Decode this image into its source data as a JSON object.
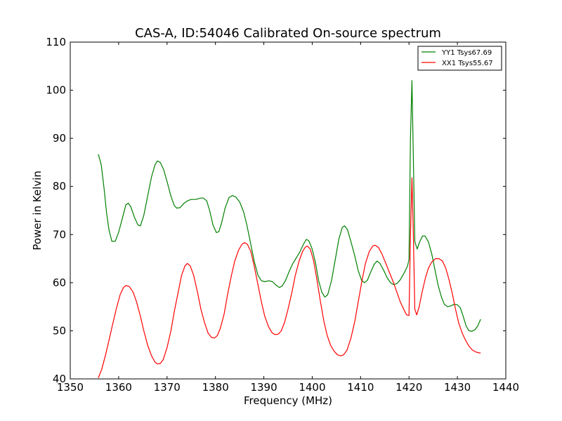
{
  "chart_data": {
    "type": "line",
    "title": "CAS-A, ID:54046 Calibrated On-source spectrum",
    "xlabel": "Frequency (MHz)",
    "ylabel": "Power in Kelvin",
    "xlim": [
      1350,
      1440
    ],
    "ylim": [
      40,
      110
    ],
    "xticks": [
      1350,
      1360,
      1370,
      1380,
      1390,
      1400,
      1410,
      1420,
      1430,
      1440
    ],
    "yticks": [
      40,
      50,
      60,
      70,
      80,
      90,
      100,
      110
    ],
    "grid": false,
    "legend_position": "top-right",
    "series": [
      {
        "name": "YY1 Tsys67.69",
        "color": "#008000",
        "points": [
          [
            1355.8,
            86.7
          ],
          [
            1356.4,
            84.5
          ],
          [
            1357.0,
            79.5
          ],
          [
            1357.5,
            74.5
          ],
          [
            1358.0,
            71.0
          ],
          [
            1358.6,
            68.6
          ],
          [
            1359.3,
            68.6
          ],
          [
            1360.0,
            70.5
          ],
          [
            1360.8,
            73.5
          ],
          [
            1361.5,
            76.2
          ],
          [
            1362.0,
            76.5
          ],
          [
            1362.5,
            75.8
          ],
          [
            1363.3,
            73.5
          ],
          [
            1364.0,
            72.0
          ],
          [
            1364.5,
            71.8
          ],
          [
            1365.2,
            74.0
          ],
          [
            1366.0,
            78.0
          ],
          [
            1366.8,
            82.0
          ],
          [
            1367.5,
            84.5
          ],
          [
            1368.0,
            85.3
          ],
          [
            1368.6,
            85.0
          ],
          [
            1369.3,
            83.5
          ],
          [
            1370.0,
            81.0
          ],
          [
            1370.8,
            78.0
          ],
          [
            1371.5,
            76.0
          ],
          [
            1372.0,
            75.5
          ],
          [
            1372.7,
            75.6
          ],
          [
            1373.5,
            76.5
          ],
          [
            1374.2,
            77.0
          ],
          [
            1375.0,
            77.3
          ],
          [
            1376.0,
            77.3
          ],
          [
            1377.0,
            77.6
          ],
          [
            1377.5,
            77.6
          ],
          [
            1378.2,
            77.0
          ],
          [
            1378.8,
            75.0
          ],
          [
            1379.5,
            72.0
          ],
          [
            1380.2,
            70.4
          ],
          [
            1380.7,
            70.6
          ],
          [
            1381.3,
            72.5
          ],
          [
            1382.0,
            75.5
          ],
          [
            1382.8,
            77.7
          ],
          [
            1383.5,
            78.1
          ],
          [
            1384.2,
            77.8
          ],
          [
            1385.0,
            76.8
          ],
          [
            1385.8,
            74.8
          ],
          [
            1386.5,
            72.0
          ],
          [
            1387.3,
            68.0
          ],
          [
            1388.0,
            64.5
          ],
          [
            1388.8,
            61.5
          ],
          [
            1389.5,
            60.4
          ],
          [
            1390.2,
            60.2
          ],
          [
            1391.0,
            60.4
          ],
          [
            1391.8,
            60.2
          ],
          [
            1392.5,
            59.5
          ],
          [
            1393.2,
            59.0
          ],
          [
            1393.8,
            59.3
          ],
          [
            1394.5,
            60.5
          ],
          [
            1395.3,
            62.5
          ],
          [
            1396.0,
            64.0
          ],
          [
            1396.8,
            65.3
          ],
          [
            1397.5,
            66.5
          ],
          [
            1398.2,
            68.0
          ],
          [
            1398.8,
            69.0
          ],
          [
            1399.3,
            68.7
          ],
          [
            1400.0,
            67.0
          ],
          [
            1400.7,
            64.0
          ],
          [
            1401.3,
            60.5
          ],
          [
            1402.0,
            58.0
          ],
          [
            1402.6,
            57.0
          ],
          [
            1403.2,
            57.5
          ],
          [
            1404.0,
            60.5
          ],
          [
            1404.8,
            65.0
          ],
          [
            1405.5,
            69.0
          ],
          [
            1406.2,
            71.5
          ],
          [
            1406.7,
            71.8
          ],
          [
            1407.3,
            71.0
          ],
          [
            1408.0,
            68.5
          ],
          [
            1408.8,
            65.5
          ],
          [
            1409.5,
            62.5
          ],
          [
            1410.2,
            60.5
          ],
          [
            1410.8,
            60.0
          ],
          [
            1411.4,
            60.5
          ],
          [
            1412.0,
            62.0
          ],
          [
            1412.8,
            63.8
          ],
          [
            1413.4,
            64.5
          ],
          [
            1414.0,
            64.0
          ],
          [
            1414.8,
            62.5
          ],
          [
            1415.5,
            61.0
          ],
          [
            1416.2,
            60.0
          ],
          [
            1416.8,
            59.6
          ],
          [
            1417.5,
            59.8
          ],
          [
            1418.2,
            60.6
          ],
          [
            1419.0,
            62.0
          ],
          [
            1419.7,
            63.5
          ],
          [
            1420.0,
            64.8
          ],
          [
            1420.3,
            90.0
          ],
          [
            1420.6,
            102.0
          ],
          [
            1420.9,
            86.0
          ],
          [
            1421.2,
            68.5
          ],
          [
            1421.7,
            67.0
          ],
          [
            1422.2,
            68.5
          ],
          [
            1422.8,
            69.7
          ],
          [
            1423.3,
            69.7
          ],
          [
            1424.0,
            68.5
          ],
          [
            1424.7,
            66.0
          ],
          [
            1425.4,
            62.5
          ],
          [
            1426.0,
            59.5
          ],
          [
            1426.7,
            57.0
          ],
          [
            1427.3,
            55.5
          ],
          [
            1428.0,
            55.0
          ],
          [
            1428.7,
            55.2
          ],
          [
            1429.3,
            55.5
          ],
          [
            1430.0,
            55.4
          ],
          [
            1430.6,
            54.8
          ],
          [
            1431.2,
            53.0
          ],
          [
            1431.8,
            51.0
          ],
          [
            1432.4,
            50.0
          ],
          [
            1433.0,
            49.9
          ],
          [
            1433.6,
            50.2
          ],
          [
            1434.2,
            51.0
          ],
          [
            1434.8,
            52.4
          ]
        ]
      },
      {
        "name": "XX1 Tsys55.67",
        "color": "#ff0000",
        "points": [
          [
            1355.8,
            40.2
          ],
          [
            1356.5,
            42.0
          ],
          [
            1357.3,
            45.0
          ],
          [
            1358.0,
            48.0
          ],
          [
            1358.8,
            51.5
          ],
          [
            1359.5,
            54.5
          ],
          [
            1360.3,
            57.5
          ],
          [
            1361.0,
            59.0
          ],
          [
            1361.5,
            59.4
          ],
          [
            1362.2,
            59.2
          ],
          [
            1363.0,
            58.0
          ],
          [
            1363.7,
            56.0
          ],
          [
            1364.5,
            53.0
          ],
          [
            1365.2,
            50.0
          ],
          [
            1366.0,
            47.0
          ],
          [
            1366.8,
            44.8
          ],
          [
            1367.5,
            43.5
          ],
          [
            1368.0,
            43.1
          ],
          [
            1368.6,
            43.2
          ],
          [
            1369.2,
            44.0
          ],
          [
            1370.0,
            46.5
          ],
          [
            1370.8,
            50.0
          ],
          [
            1371.5,
            54.0
          ],
          [
            1372.3,
            58.0
          ],
          [
            1373.0,
            61.5
          ],
          [
            1373.7,
            63.5
          ],
          [
            1374.2,
            64.0
          ],
          [
            1374.8,
            63.5
          ],
          [
            1375.5,
            61.5
          ],
          [
            1376.3,
            58.0
          ],
          [
            1377.0,
            54.5
          ],
          [
            1377.8,
            51.5
          ],
          [
            1378.5,
            49.5
          ],
          [
            1379.2,
            48.6
          ],
          [
            1379.8,
            48.5
          ],
          [
            1380.4,
            49.0
          ],
          [
            1381.0,
            50.5
          ],
          [
            1381.8,
            53.5
          ],
          [
            1382.5,
            57.5
          ],
          [
            1383.3,
            61.5
          ],
          [
            1384.0,
            64.5
          ],
          [
            1384.8,
            66.8
          ],
          [
            1385.5,
            68.0
          ],
          [
            1386.0,
            68.3
          ],
          [
            1386.6,
            68.0
          ],
          [
            1387.3,
            66.5
          ],
          [
            1388.0,
            63.5
          ],
          [
            1388.8,
            59.5
          ],
          [
            1389.5,
            56.0
          ],
          [
            1390.2,
            53.0
          ],
          [
            1391.0,
            50.8
          ],
          [
            1391.7,
            49.6
          ],
          [
            1392.3,
            49.2
          ],
          [
            1393.0,
            49.3
          ],
          [
            1393.6,
            50.0
          ],
          [
            1394.3,
            51.8
          ],
          [
            1395.0,
            54.5
          ],
          [
            1395.8,
            58.0
          ],
          [
            1396.5,
            61.5
          ],
          [
            1397.3,
            64.5
          ],
          [
            1398.0,
            66.5
          ],
          [
            1398.6,
            67.4
          ],
          [
            1399.0,
            67.6
          ],
          [
            1399.6,
            67.0
          ],
          [
            1400.3,
            64.5
          ],
          [
            1401.0,
            60.5
          ],
          [
            1401.7,
            56.0
          ],
          [
            1402.4,
            52.0
          ],
          [
            1403.1,
            49.0
          ],
          [
            1403.8,
            47.0
          ],
          [
            1404.5,
            45.8
          ],
          [
            1405.2,
            45.0
          ],
          [
            1405.9,
            44.8
          ],
          [
            1406.5,
            45.0
          ],
          [
            1407.2,
            46.0
          ],
          [
            1408.0,
            48.5
          ],
          [
            1408.8,
            52.0
          ],
          [
            1409.5,
            56.0
          ],
          [
            1410.3,
            60.5
          ],
          [
            1411.0,
            64.0
          ],
          [
            1411.8,
            66.5
          ],
          [
            1412.5,
            67.6
          ],
          [
            1413.0,
            67.8
          ],
          [
            1413.7,
            67.3
          ],
          [
            1414.4,
            66.0
          ],
          [
            1415.2,
            64.0
          ],
          [
            1416.0,
            62.0
          ],
          [
            1416.8,
            60.0
          ],
          [
            1417.5,
            58.0
          ],
          [
            1418.2,
            56.0
          ],
          [
            1418.9,
            54.5
          ],
          [
            1419.5,
            53.3
          ],
          [
            1420.0,
            53.2
          ],
          [
            1420.3,
            70.0
          ],
          [
            1420.6,
            81.8
          ],
          [
            1420.9,
            70.0
          ],
          [
            1421.2,
            54.5
          ],
          [
            1421.6,
            53.3
          ],
          [
            1422.1,
            55.0
          ],
          [
            1422.7,
            58.0
          ],
          [
            1423.4,
            61.0
          ],
          [
            1424.0,
            63.0
          ],
          [
            1424.7,
            64.3
          ],
          [
            1425.5,
            65.0
          ],
          [
            1426.2,
            65.0
          ],
          [
            1426.9,
            64.5
          ],
          [
            1427.6,
            63.0
          ],
          [
            1428.3,
            60.5
          ],
          [
            1429.0,
            57.5
          ],
          [
            1429.6,
            54.5
          ],
          [
            1430.3,
            51.5
          ],
          [
            1431.0,
            49.5
          ],
          [
            1431.7,
            48.0
          ],
          [
            1432.4,
            46.8
          ],
          [
            1433.1,
            46.0
          ],
          [
            1433.8,
            45.6
          ],
          [
            1434.5,
            45.4
          ],
          [
            1434.8,
            45.4
          ]
        ]
      }
    ]
  }
}
